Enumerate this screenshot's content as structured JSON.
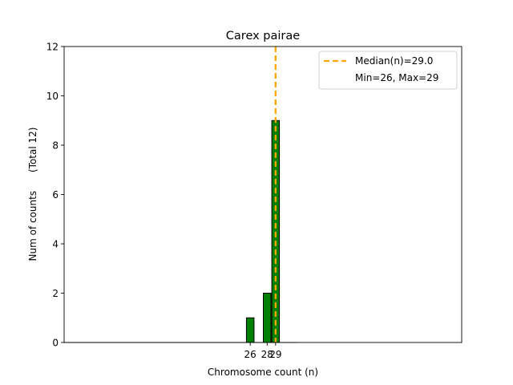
{
  "chart_data": {
    "type": "bar",
    "title": "Carex pairae",
    "xlabel": "Chromosome count (n)",
    "ylabel": "Num of counts      (Total 12)",
    "ylim": [
      0,
      12
    ],
    "yticks": [
      0,
      2,
      4,
      6,
      8,
      10,
      12
    ],
    "xticks": [
      "26",
      "28",
      "29"
    ],
    "x": [
      26,
      28,
      29
    ],
    "values": [
      1,
      2,
      9
    ],
    "bar_color": "#008000",
    "bar_edge_color": "#000000",
    "median_line": {
      "value": 29.0,
      "color": "#ffa500",
      "style": "dashed"
    },
    "legend": {
      "placement": "top-right",
      "entries": [
        "Median(n)=29.0",
        "Min=26, Max=29"
      ]
    },
    "grid": false
  }
}
